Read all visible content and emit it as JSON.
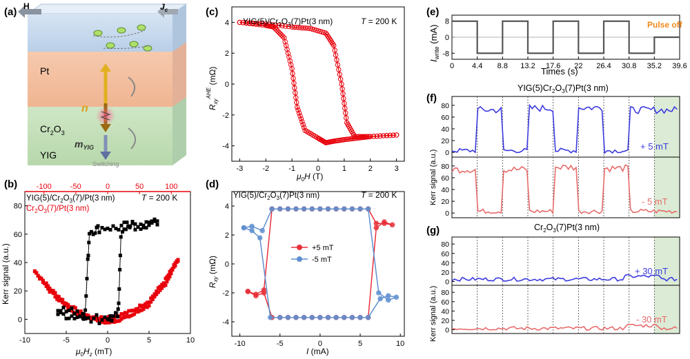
{
  "panels": {
    "a": {
      "label": "(a)",
      "H": "H",
      "Jc": "J",
      "Jc_sub": "c",
      "layers": [
        "Pt",
        "Cr",
        "YIG"
      ],
      "cr_sub1": "2",
      "cr_mid": "O",
      "cr_sub2": "3",
      "n": "n",
      "m": "m",
      "m_sub": "YIG",
      "switching": "Switching"
    }
  },
  "chart_data": [
    {
      "id": "b",
      "type": "scatter",
      "label": "(b)",
      "annotation": "T = 200 K",
      "legend": [
        "YIG(5)/Cr2O3(7)/Pt(3 nm)",
        "Cr2O3(7)/Pt(3 nm)"
      ],
      "xlabel": "μ0Hz (mT)",
      "ylabel": "Kerr signal (a.u.)",
      "top_axis_ticks": [
        -100,
        -50,
        0,
        50,
        100
      ],
      "bottom_axis_ticks": [
        -10,
        -5,
        0,
        5,
        10
      ],
      "y_ticks": [
        0,
        20,
        40,
        60,
        80
      ],
      "xlim": [
        -10,
        10
      ],
      "ylim": [
        -10,
        90
      ],
      "series": [
        {
          "color": "#000000",
          "marker": "square",
          "descending": [
            [
              6,
              68
            ],
            [
              5,
              66
            ],
            [
              4,
              65
            ],
            [
              3,
              66
            ],
            [
              2.2,
              64
            ],
            [
              1.6,
              58
            ],
            [
              1.4,
              20
            ],
            [
              1.2,
              2
            ],
            [
              0.5,
              1
            ],
            [
              0,
              2
            ],
            [
              -1,
              0
            ],
            [
              -2,
              1
            ],
            [
              -3,
              3
            ],
            [
              -4,
              5
            ],
            [
              -5,
              6
            ],
            [
              -6,
              7
            ]
          ],
          "ascending": [
            [
              -6,
              4
            ],
            [
              -5,
              3
            ],
            [
              -4,
              2
            ],
            [
              -3,
              2
            ],
            [
              -2.7,
              5
            ],
            [
              -2.4,
              40
            ],
            [
              -2.2,
              62
            ],
            [
              -1.5,
              63
            ],
            [
              -1,
              64
            ],
            [
              0,
              65
            ],
            [
              1,
              64
            ],
            [
              2,
              66
            ],
            [
              3,
              65
            ],
            [
              4,
              66
            ],
            [
              5,
              67
            ],
            [
              6,
              68
            ]
          ]
        },
        {
          "color": "#e8000b",
          "marker": "square",
          "branch1": [
            [
              -8.8,
              34
            ],
            [
              -7,
              22
            ],
            [
              -5,
              11
            ],
            [
              -3,
              4
            ],
            [
              -1,
              -1
            ],
            [
              0,
              -2
            ],
            [
              1,
              -1
            ],
            [
              3,
              3
            ],
            [
              5,
              10
            ],
            [
              7,
              25
            ],
            [
              8.5,
              42
            ]
          ],
          "branch2": [
            [
              -8.8,
              34
            ],
            [
              -7,
              20
            ],
            [
              -5,
              9
            ],
            [
              -3,
              2
            ],
            [
              -1,
              1
            ],
            [
              1,
              2
            ],
            [
              3,
              6
            ],
            [
              5,
              13
            ],
            [
              7,
              28
            ],
            [
              8.5,
              42
            ]
          ]
        }
      ]
    },
    {
      "id": "c",
      "type": "line",
      "label": "(c)",
      "title": "YIG(5)/Cr2O3(7)Pt(3 nm)",
      "annotation": "T = 200 K",
      "xlabel": "μ0H (T)",
      "ylabel": "R_xy^AHE (mΩ)",
      "x_ticks": [
        -3,
        -2,
        -1,
        0,
        1,
        2,
        3
      ],
      "y_ticks": [
        -4,
        -2,
        0,
        2,
        4
      ],
      "xlim": [
        -3.3,
        3.3
      ],
      "ylim": [
        -5,
        5
      ],
      "series": [
        {
          "color": "#e8000b",
          "marker": "circle-open",
          "down": [
            [
              3,
              -3.3
            ],
            [
              2,
              -3.4
            ],
            [
              1.5,
              -3.5
            ],
            [
              1,
              -3.6
            ],
            [
              0.6,
              -3.7
            ],
            [
              0.3,
              -3.8
            ],
            [
              0,
              -3.5
            ],
            [
              -0.5,
              -3
            ],
            [
              -0.8,
              -1.5
            ],
            [
              -1,
              1
            ],
            [
              -1.3,
              3
            ],
            [
              -1.7,
              3.7
            ],
            [
              -2,
              3.8
            ],
            [
              -3,
              4
            ]
          ],
          "up": [
            [
              -3,
              4.0
            ],
            [
              -2,
              3.9
            ],
            [
              -1,
              3.7
            ],
            [
              -0.3,
              3.6
            ],
            [
              0.3,
              3.3
            ],
            [
              0.6,
              2.5
            ],
            [
              0.9,
              0
            ],
            [
              1.1,
              -2.5
            ],
            [
              1.4,
              -3.4
            ],
            [
              2,
              -3.4
            ],
            [
              3,
              -3.3
            ]
          ]
        }
      ]
    },
    {
      "id": "d",
      "type": "line",
      "label": "(d)",
      "title": "YIG(5)/Cr2O3(7)Pt(3 nm)",
      "annotation": "T = 200 K",
      "xlabel": "I (mA)",
      "ylabel": "R_xy (mΩ)",
      "x_ticks": [
        -10,
        -5,
        0,
        5,
        10
      ],
      "y_ticks": [
        -4,
        -2,
        0,
        2,
        4
      ],
      "xlim": [
        -11,
        10.5
      ],
      "ylim": [
        -5,
        5
      ],
      "series": [
        {
          "name": "+5 mT",
          "color": "#e8303a",
          "pts": [
            [
              -9,
              -1.9
            ],
            [
              -8,
              -2.1
            ],
            [
              -7,
              -1.8
            ],
            [
              -6,
              3.8
            ],
            [
              -5,
              3.8
            ],
            [
              -4,
              3.8
            ],
            [
              -3,
              3.8
            ],
            [
              -2,
              3.8
            ],
            [
              -1,
              3.8
            ],
            [
              0,
              3.8
            ],
            [
              1,
              3.8
            ],
            [
              2,
              3.8
            ],
            [
              3,
              3.8
            ],
            [
              4,
              3.8
            ],
            [
              5,
              3.8
            ],
            [
              6,
              3.8
            ],
            [
              7,
              2.8
            ],
            [
              8,
              2.8
            ],
            [
              9,
              2.7
            ],
            [
              8,
              2.9
            ],
            [
              7,
              2.5
            ],
            [
              6,
              -3.7
            ],
            [
              5,
              -3.7
            ],
            [
              4,
              -3.7
            ],
            [
              3,
              -3.7
            ],
            [
              2,
              -3.7
            ],
            [
              1,
              -3.7
            ],
            [
              0,
              -3.7
            ],
            [
              -1,
              -3.7
            ],
            [
              -2,
              -3.7
            ],
            [
              -3,
              -3.7
            ],
            [
              -4,
              -3.7
            ],
            [
              -5,
              -3.7
            ],
            [
              -6,
              -3.7
            ],
            [
              -7,
              -2.0
            ],
            [
              -8,
              -2.2
            ],
            [
              -9,
              -1.9
            ]
          ]
        },
        {
          "name": "-5 mT",
          "color": "#5f8fd0",
          "pts": [
            [
              -9.5,
              2.5
            ],
            [
              -8.5,
              2.3
            ],
            [
              -7.5,
              1.8
            ],
            [
              -6.2,
              -3.7
            ],
            [
              -5,
              -3.7
            ],
            [
              -4,
              -3.7
            ],
            [
              -3,
              -3.7
            ],
            [
              -2,
              -3.7
            ],
            [
              -1,
              -3.7
            ],
            [
              0,
              -3.7
            ],
            [
              1,
              -3.7
            ],
            [
              2,
              -3.7
            ],
            [
              3,
              -3.7
            ],
            [
              4,
              -3.7
            ],
            [
              5,
              -3.7
            ],
            [
              6,
              -3.7
            ],
            [
              7.5,
              -2.4
            ],
            [
              8.5,
              -2.2
            ],
            [
              9.5,
              -2.3
            ],
            [
              8.5,
              -2.5
            ],
            [
              7.3,
              -2.0
            ],
            [
              6,
              3.8
            ],
            [
              5,
              3.8
            ],
            [
              4,
              3.8
            ],
            [
              3,
              3.8
            ],
            [
              2,
              3.8
            ],
            [
              1,
              3.8
            ],
            [
              0,
              3.8
            ],
            [
              -1,
              3.8
            ],
            [
              -2,
              3.8
            ],
            [
              -3,
              3.8
            ],
            [
              -4,
              3.8
            ],
            [
              -5,
              3.8
            ],
            [
              -6,
              3.8
            ],
            [
              -7.2,
              2.3
            ],
            [
              -8.5,
              2.6
            ],
            [
              -9.5,
              2.5
            ]
          ]
        }
      ]
    },
    {
      "id": "e",
      "type": "line",
      "label": "(e)",
      "annotation": "Pulse off",
      "xlabel": "Times (s)",
      "ylabel": "I_write (mA)",
      "x_ticks": [
        0,
        4.4,
        8.8,
        13.2,
        17.6,
        22,
        26.4,
        30.8,
        35.2,
        39.6
      ],
      "y_ticks": [
        8,
        0,
        -8
      ],
      "xlim": [
        0,
        39.6
      ],
      "ylim": [
        -11,
        11
      ],
      "series": [
        {
          "color": "#555555",
          "pts": [
            [
              0,
              8
            ],
            [
              4.4,
              8
            ],
            [
              4.4,
              -8
            ],
            [
              8.8,
              -8
            ],
            [
              8.8,
              8
            ],
            [
              13.2,
              8
            ],
            [
              13.2,
              -8
            ],
            [
              17.6,
              -8
            ],
            [
              17.6,
              8
            ],
            [
              22,
              8
            ],
            [
              22,
              -8
            ],
            [
              26.4,
              -8
            ],
            [
              26.4,
              8
            ],
            [
              30.8,
              8
            ],
            [
              30.8,
              -8
            ],
            [
              35.2,
              -8
            ],
            [
              35.2,
              0
            ],
            [
              39.6,
              0
            ]
          ]
        }
      ]
    },
    {
      "id": "f",
      "type": "line",
      "label": "(f)",
      "title": "YIG(5)Cr2O3(7)Pt(3 nm)",
      "ylabel": "Kerr signal (a.u.)",
      "y_ticks": [
        0,
        20,
        40,
        60,
        80
      ],
      "ylim": [
        -8,
        95
      ],
      "series": [
        {
          "name": "+ 5 mT",
          "color": "#3a3adf",
          "levels": [
            [
              0,
              4.4,
              3
            ],
            [
              4.4,
              8.8,
              72
            ],
            [
              8.8,
              13.2,
              3
            ],
            [
              13.2,
              17.6,
              75
            ],
            [
              17.6,
              22,
              3
            ],
            [
              22,
              26.4,
              76
            ],
            [
              26.4,
              30.8,
              3
            ],
            [
              30.8,
              39.6,
              72
            ]
          ]
        },
        {
          "name": "- 5 mT",
          "color": "#e86a6a",
          "levels": [
            [
              0,
              4.4,
              74
            ],
            [
              4.4,
              8.8,
              3
            ],
            [
              8.8,
              13.2,
              74
            ],
            [
              13.2,
              17.6,
              3
            ],
            [
              17.6,
              22,
              78
            ],
            [
              22,
              26.4,
              3
            ],
            [
              26.4,
              30.8,
              76
            ],
            [
              30.8,
              39.6,
              3
            ]
          ]
        }
      ]
    },
    {
      "id": "g",
      "type": "line",
      "label": "(g)",
      "title": "Cr2O3(7)Pt(3 nm)",
      "ylabel": "Kerr signal (a.u.)",
      "y_ticks": [
        0,
        20,
        40,
        60,
        80
      ],
      "ylim": [
        -8,
        95
      ],
      "series": [
        {
          "name": "+ 30 mT",
          "color": "#3a3adf",
          "base": 5
        },
        {
          "name": "- 30 mT",
          "color": "#e86a6a",
          "base": 3
        }
      ]
    }
  ]
}
